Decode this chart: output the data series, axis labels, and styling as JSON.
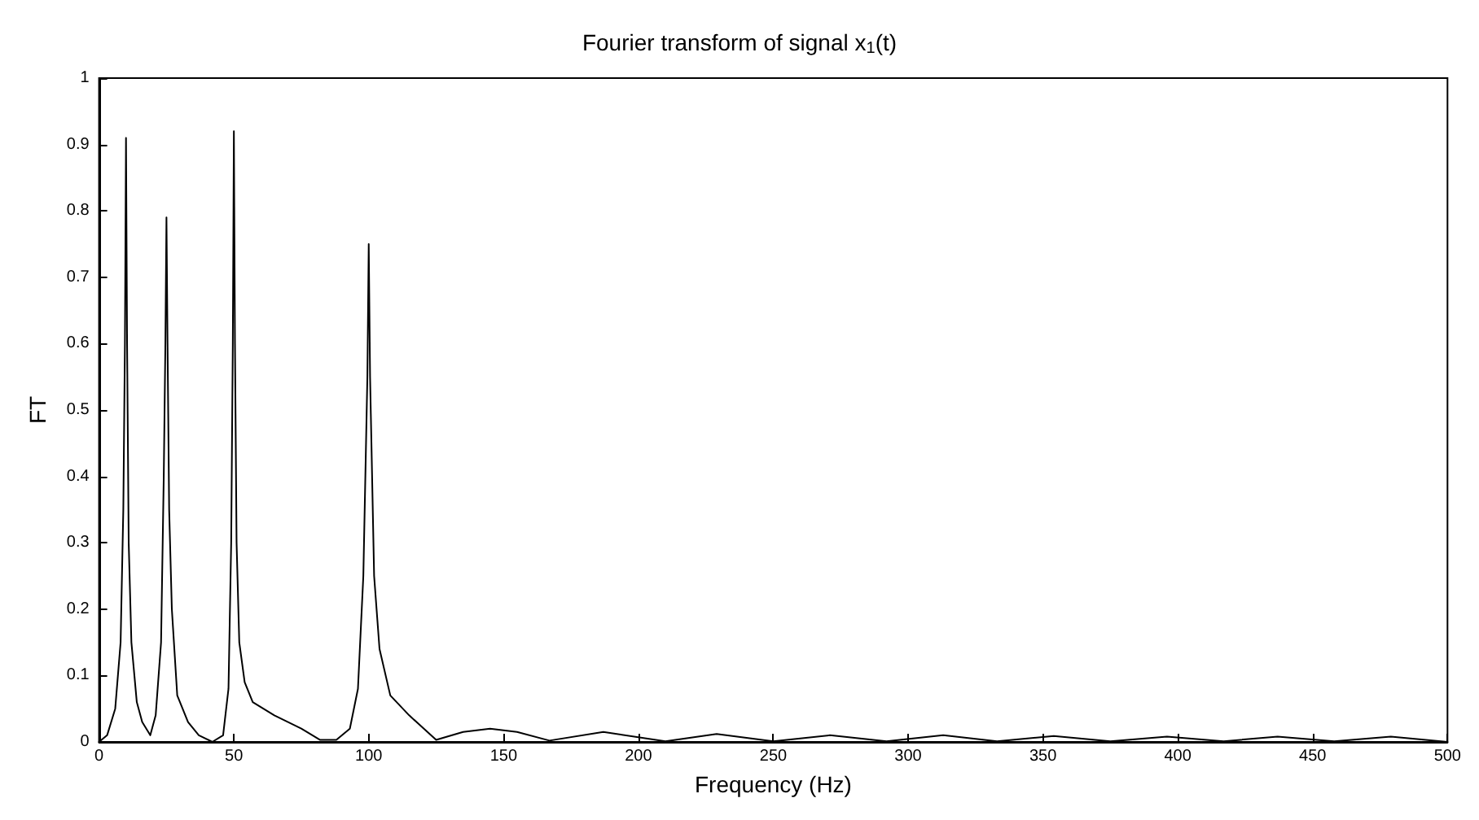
{
  "chart_data": {
    "type": "line",
    "title": "Fourier transform of signal x$_{1}$(t)",
    "xlabel": "Frequency (Hz)",
    "ylabel": "FT",
    "xlim": [
      0,
      500
    ],
    "xticks": [
      0,
      50,
      100,
      150,
      200,
      250,
      300,
      350,
      400,
      450,
      500
    ],
    "ylim": [
      0,
      1
    ],
    "yticks": [
      0,
      0.1,
      0.2,
      0.3,
      0.4,
      0.5,
      0.6,
      0.7,
      0.8,
      0.9,
      1
    ],
    "grid": false,
    "marker": "none",
    "line_style": "solid",
    "series": [
      {
        "color": "#000000",
        "x": [
          0,
          3,
          6,
          8,
          9,
          9.6,
          10,
          10.4,
          11,
          12,
          14,
          16,
          19,
          21,
          23,
          24,
          24.6,
          25,
          25.4,
          26,
          27,
          29,
          33,
          37,
          42,
          46,
          48,
          49,
          49.6,
          50,
          50.4,
          51,
          52,
          54,
          57,
          65,
          75,
          82,
          88,
          93,
          96,
          98,
          99.5,
          100,
          100.5,
          102,
          104,
          108,
          115,
          125,
          135,
          145,
          155,
          167,
          187,
          210,
          229,
          250,
          271,
          292,
          313,
          333,
          354,
          375,
          396,
          417,
          437,
          458,
          479,
          500
        ],
        "values": [
          0,
          0.01,
          0.05,
          0.15,
          0.35,
          0.6,
          0.91,
          0.6,
          0.3,
          0.15,
          0.06,
          0.03,
          0.01,
          0.04,
          0.15,
          0.4,
          0.6,
          0.79,
          0.6,
          0.35,
          0.2,
          0.07,
          0.03,
          0.01,
          0,
          0.01,
          0.08,
          0.3,
          0.6,
          0.92,
          0.6,
          0.3,
          0.15,
          0.09,
          0.06,
          0.04,
          0.02,
          0.003,
          0.003,
          0.02,
          0.08,
          0.25,
          0.55,
          0.75,
          0.55,
          0.25,
          0.14,
          0.07,
          0.04,
          0.003,
          0.015,
          0.02,
          0.015,
          0.002,
          0.015,
          0.001,
          0.012,
          0.001,
          0.01,
          0.001,
          0.01,
          0.001,
          0.009,
          0.001,
          0.008,
          0.001,
          0.008,
          0.001,
          0.008,
          0
        ]
      }
    ]
  }
}
